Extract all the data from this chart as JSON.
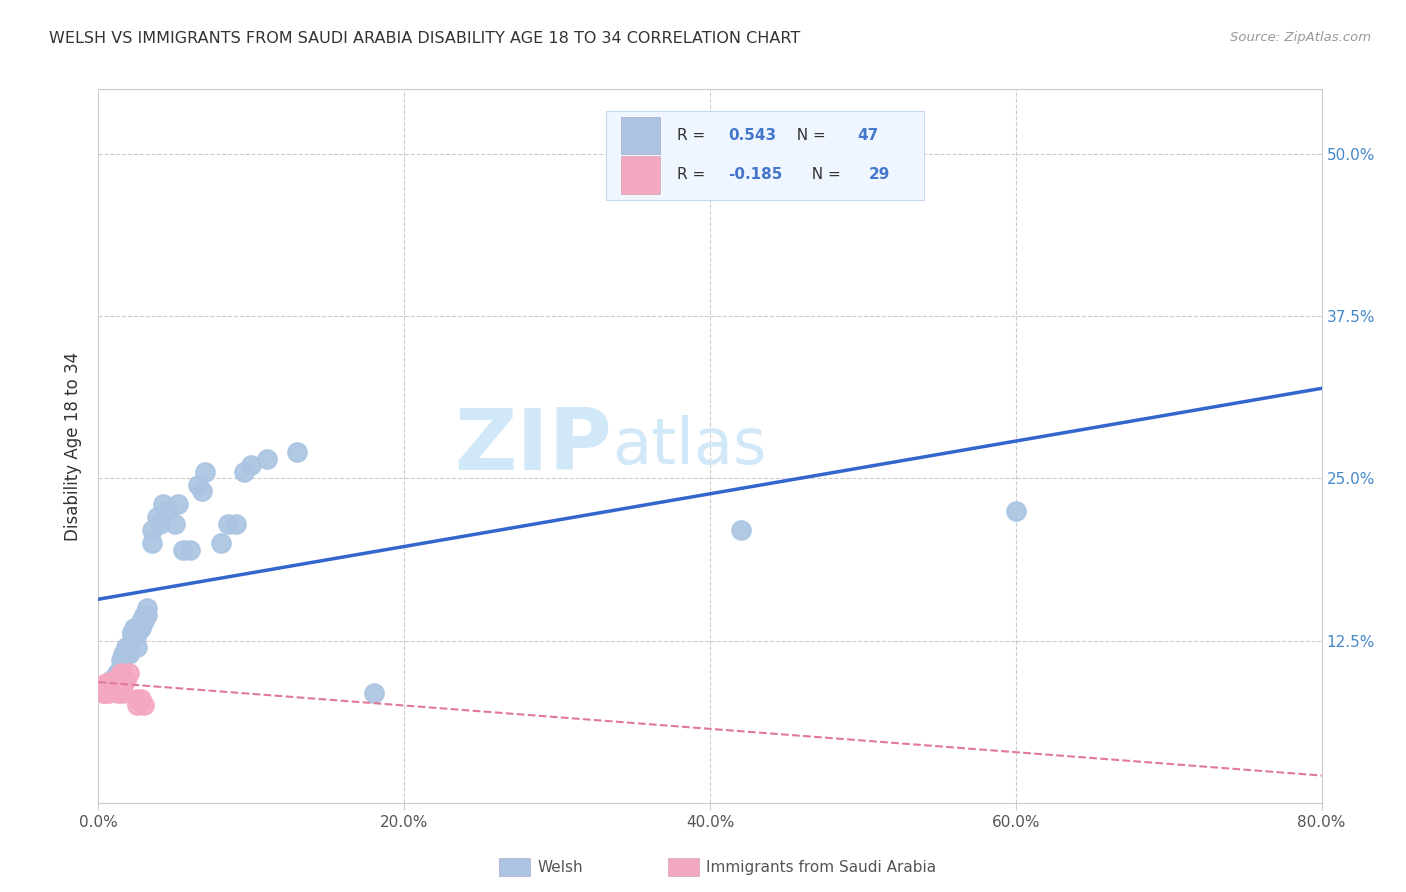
{
  "title": "WELSH VS IMMIGRANTS FROM SAUDI ARABIA DISABILITY AGE 18 TO 34 CORRELATION CHART",
  "source": "Source: ZipAtlas.com",
  "ylabel": "Disability Age 18 to 34",
  "xlim": [
    0,
    0.8
  ],
  "ylim": [
    0,
    0.55
  ],
  "xticks": [
    0.0,
    0.2,
    0.4,
    0.6,
    0.8
  ],
  "xtick_labels": [
    "0.0%",
    "20.0%",
    "40.0%",
    "60.0%",
    "80.0%"
  ],
  "yticks": [
    0.0,
    0.125,
    0.25,
    0.375,
    0.5
  ],
  "ytick_labels": [
    "",
    "12.5%",
    "25.0%",
    "37.5%",
    "50.0%"
  ],
  "welsh_R": 0.543,
  "welsh_N": 47,
  "saudi_R": -0.185,
  "saudi_N": 29,
  "welsh_color": "#aac4e2",
  "welsh_line_color": "#3366cc",
  "saudi_color": "#f4a8c0",
  "saudi_line_color": "#e07898",
  "watermark_zip": "ZIP",
  "watermark_atlas": "atlas",
  "watermark_color": "#d0e8f8",
  "legend_color": "#4477cc",
  "legend_bg": "#f0f6ff",
  "legend_border": "#c8d8f0",
  "welsh_legend": "Welsh",
  "saudi_legend": "Immigrants from Saudi Arabia",
  "welsh_x": [
    0.005,
    0.008,
    0.01,
    0.012,
    0.014,
    0.015,
    0.015,
    0.016,
    0.018,
    0.018,
    0.02,
    0.02,
    0.022,
    0.022,
    0.023,
    0.025,
    0.025,
    0.026,
    0.028,
    0.028,
    0.03,
    0.03,
    0.032,
    0.032,
    0.035,
    0.035,
    0.038,
    0.04,
    0.042,
    0.045,
    0.05,
    0.052,
    0.055,
    0.06,
    0.065,
    0.068,
    0.07,
    0.08,
    0.085,
    0.09,
    0.095,
    0.1,
    0.11,
    0.13,
    0.18,
    0.42,
    0.6
  ],
  "welsh_y": [
    0.09,
    0.095,
    0.095,
    0.1,
    0.1,
    0.105,
    0.11,
    0.115,
    0.115,
    0.12,
    0.115,
    0.12,
    0.13,
    0.132,
    0.135,
    0.12,
    0.13,
    0.135,
    0.135,
    0.14,
    0.14,
    0.145,
    0.145,
    0.15,
    0.2,
    0.21,
    0.22,
    0.215,
    0.23,
    0.225,
    0.215,
    0.23,
    0.195,
    0.195,
    0.245,
    0.24,
    0.255,
    0.2,
    0.215,
    0.215,
    0.255,
    0.26,
    0.265,
    0.27,
    0.085,
    0.21,
    0.225
  ],
  "saudi_x": [
    0.002,
    0.003,
    0.004,
    0.004,
    0.005,
    0.005,
    0.006,
    0.006,
    0.007,
    0.007,
    0.008,
    0.008,
    0.009,
    0.01,
    0.01,
    0.011,
    0.012,
    0.012,
    0.013,
    0.014,
    0.015,
    0.016,
    0.017,
    0.018,
    0.02,
    0.025,
    0.025,
    0.028,
    0.03
  ],
  "saudi_y": [
    0.09,
    0.085,
    0.09,
    0.085,
    0.092,
    0.088,
    0.09,
    0.087,
    0.085,
    0.09,
    0.088,
    0.092,
    0.09,
    0.095,
    0.088,
    0.09,
    0.095,
    0.092,
    0.085,
    0.09,
    0.1,
    0.085,
    0.092,
    0.095,
    0.1,
    0.08,
    0.075,
    0.08,
    0.075
  ]
}
